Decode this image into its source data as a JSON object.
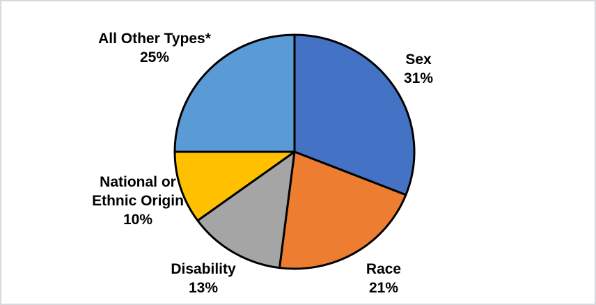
{
  "page": {
    "background": "#ffffff",
    "border_color": "#d6d9de"
  },
  "chart_data": {
    "type": "pie",
    "title": "",
    "start_angle_deg": 0,
    "direction": "clockwise",
    "stroke_color": "#000000",
    "label_color": "#000000",
    "legend": "none",
    "slices": [
      {
        "label": "Sex",
        "value": 31,
        "pct_label": "31%",
        "color": "#4472C4",
        "callout_lines": [
          "Sex",
          "31%"
        ]
      },
      {
        "label": "Race",
        "value": 21,
        "pct_label": "21%",
        "color": "#ED7D31",
        "callout_lines": [
          "Race",
          "21%"
        ]
      },
      {
        "label": "Disability",
        "value": 13,
        "pct_label": "13%",
        "color": "#A5A5A5",
        "callout_lines": [
          "Disability",
          "13%"
        ]
      },
      {
        "label": "National or Ethnic Origin",
        "value": 10,
        "pct_label": "10%",
        "color": "#FFC000",
        "callout_lines": [
          "National or",
          "Ethnic Origin",
          "10%"
        ]
      },
      {
        "label": "All Other Types*",
        "value": 25,
        "pct_label": "25%",
        "color": "#5B9BD5",
        "callout_lines": [
          "All Other Types*",
          "25%"
        ]
      }
    ]
  }
}
